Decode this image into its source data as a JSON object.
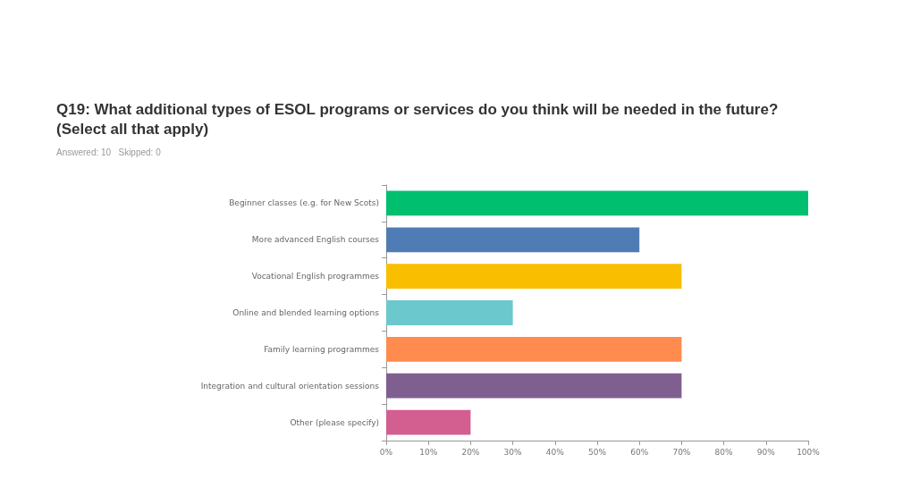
{
  "chart_data": {
    "type": "bar",
    "orientation": "horizontal",
    "title": "Q19: What additional types of ESOL programs or services do you think will be needed in the future? (Select all that apply)",
    "subtitle": "Answered: 10   Skipped: 0",
    "categories": [
      "Beginner classes (e.g. for New Scots)",
      "More advanced English courses",
      "Vocational English programmes",
      "Online and blended learning options",
      "Family learning programmes",
      "Integration and cultural orientation sessions",
      "Other (please specify)"
    ],
    "values": [
      100,
      60,
      70,
      30,
      70,
      70,
      20
    ],
    "colors": [
      "#00bf6f",
      "#507cb6",
      "#f9be00",
      "#6bc8cd",
      "#ff8b4f",
      "#7f5f90",
      "#d25f90"
    ],
    "xlim": [
      0,
      100
    ],
    "xticks": [
      {
        "value": 0,
        "label": "0%"
      },
      {
        "value": 10,
        "label": "10%"
      },
      {
        "value": 20,
        "label": "20%"
      },
      {
        "value": 30,
        "label": "30%"
      },
      {
        "value": 40,
        "label": "40%"
      },
      {
        "value": 50,
        "label": "50%"
      },
      {
        "value": 60,
        "label": "60%"
      },
      {
        "value": 70,
        "label": "70%"
      },
      {
        "value": 80,
        "label": "80%"
      },
      {
        "value": 90,
        "label": "90%"
      },
      {
        "value": 100,
        "label": "100%"
      }
    ],
    "grid": false
  }
}
